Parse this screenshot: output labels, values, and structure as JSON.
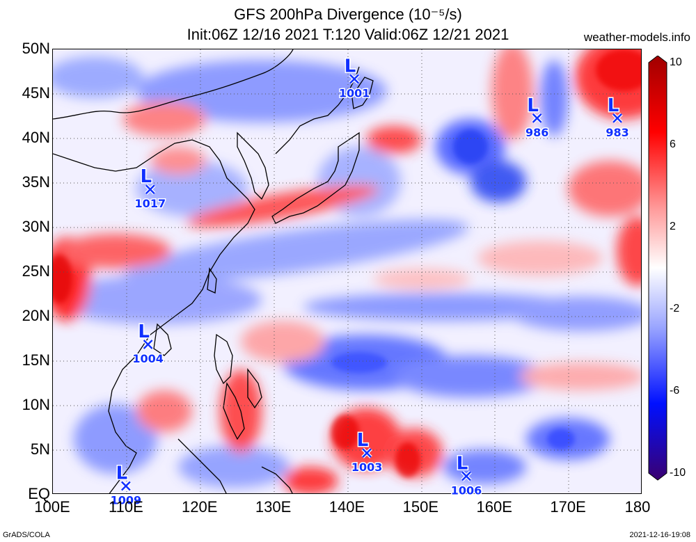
{
  "title": {
    "line1": "GFS 200hPa Divergence (10⁻⁵/s)",
    "line2": "Init:06Z 12/16 2021 T:120 Valid:06Z 12/21 2021"
  },
  "site": "weather-models.info",
  "footer": {
    "left": "GrADS/COLA",
    "right": "2021-12-16-19:08"
  },
  "axes": {
    "lat_labels": [
      "50N",
      "45N",
      "40N",
      "35N",
      "30N",
      "25N",
      "20N",
      "15N",
      "10N",
      "5N",
      "EQ"
    ],
    "lat_values": [
      50,
      45,
      40,
      35,
      30,
      25,
      20,
      15,
      10,
      5,
      0
    ],
    "lon_labels": [
      "100E",
      "110E",
      "120E",
      "130E",
      "140E",
      "150E",
      "160E",
      "170E",
      "180"
    ],
    "lon_values": [
      100,
      110,
      120,
      130,
      140,
      150,
      160,
      170,
      180
    ],
    "lat_range": [
      0,
      50
    ],
    "lon_range": [
      100,
      180
    ],
    "grid": "dotted"
  },
  "colorbar": {
    "labels": [
      "10",
      "6",
      "2",
      "-2",
      "-6",
      "-10"
    ],
    "values": [
      10,
      6,
      2,
      -2,
      -6,
      -10
    ],
    "colors": {
      "max": "#a00000",
      "pos": "#ff2020",
      "neutral": "#ffffff",
      "neg": "#2040ff",
      "min": "#3a0070"
    }
  },
  "lows": [
    {
      "label": "L",
      "pressure": "1001",
      "lon": 141.0,
      "lat": 46.6
    },
    {
      "label": "L",
      "pressure": "986",
      "lon": 165.8,
      "lat": 42.2
    },
    {
      "label": "L",
      "pressure": "983",
      "lon": 176.7,
      "lat": 42.2
    },
    {
      "label": "L",
      "pressure": "1017",
      "lon": 113.3,
      "lat": 34.2
    },
    {
      "label": "L",
      "pressure": "1004",
      "lon": 113.0,
      "lat": 16.8
    },
    {
      "label": "L",
      "pressure": "1003",
      "lon": 142.7,
      "lat": 4.6
    },
    {
      "label": "L",
      "pressure": "1006",
      "lon": 156.2,
      "lat": 2.0
    },
    {
      "label": "L",
      "pressure": "1009",
      "lon": 110.0,
      "lat": 0.9
    }
  ],
  "colors": {
    "low_marker": "#1030ff",
    "coast": "#000000"
  }
}
